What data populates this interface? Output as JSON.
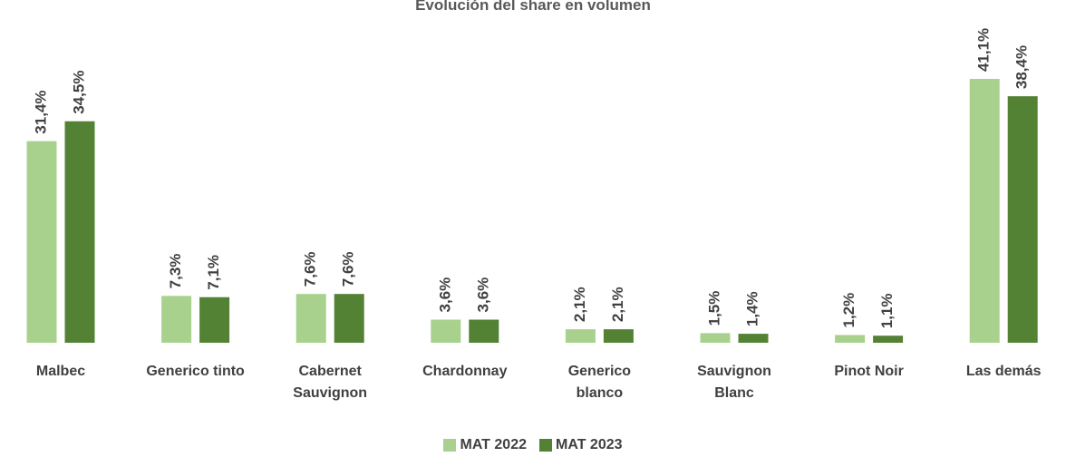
{
  "chart_data": {
    "type": "bar",
    "title": "Evolución del share en volumen",
    "categories": [
      "Malbec",
      "Generico tinto",
      "Cabernet Sauvignon",
      "Chardonnay",
      "Generico blanco",
      "Sauvignon Blanc",
      "Pinot Noir",
      "Las demás"
    ],
    "series": [
      {
        "name": "MAT 2022",
        "color": "#a9d18e",
        "values": [
          31.4,
          7.3,
          7.6,
          3.6,
          2.1,
          1.5,
          1.2,
          41.1
        ],
        "value_labels": [
          "31,4%",
          "7,3%",
          "7,6%",
          "3,6%",
          "2,1%",
          "1,5%",
          "1,2%",
          "41,1%"
        ]
      },
      {
        "name": "MAT 2023",
        "color": "#548235",
        "values": [
          34.5,
          7.1,
          7.6,
          3.6,
          2.1,
          1.4,
          1.1,
          38.4
        ],
        "value_labels": [
          "34,5%",
          "7,1%",
          "7,6%",
          "3,6%",
          "2,1%",
          "1,4%",
          "1,1%",
          "38,4%"
        ]
      }
    ],
    "legend": "bottom"
  }
}
